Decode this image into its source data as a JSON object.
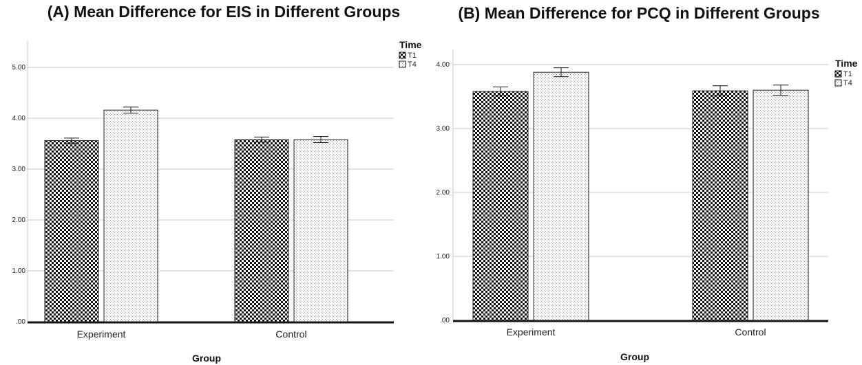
{
  "chart_data": [
    {
      "type": "bar",
      "title": "(A) Mean Difference for EIS in Different Groups",
      "xlabel": "Group",
      "ylabel": "",
      "categories": [
        "Experiment",
        "Control"
      ],
      "legend_title": "Time",
      "legend_position": "top-right",
      "ylim": [
        0,
        5
      ],
      "yticks": [
        0,
        1,
        2,
        3,
        4,
        5
      ],
      "ytick_labels": [
        ".00",
        "1.00",
        "2.00",
        "3.00",
        "4.00",
        "5.00"
      ],
      "grid": true,
      "series": [
        {
          "name": "T1",
          "pattern": "checkerboard",
          "values": [
            3.56,
            3.58
          ],
          "error": [
            0.05,
            0.05
          ]
        },
        {
          "name": "T4",
          "pattern": "dotted",
          "values": [
            4.16,
            3.58
          ],
          "error": [
            0.06,
            0.06
          ]
        }
      ]
    },
    {
      "type": "bar",
      "title": "(B) Mean Difference for PCQ in Different Groups",
      "xlabel": "Group",
      "ylabel": "",
      "categories": [
        "Experiment",
        "Control"
      ],
      "legend_title": "Time",
      "legend_position": "top-right",
      "ylim": [
        0,
        4
      ],
      "yticks": [
        0,
        1,
        2,
        3,
        4
      ],
      "ytick_labels": [
        ".00",
        "1.00",
        "2.00",
        "3.00",
        "4.00"
      ],
      "grid": true,
      "series": [
        {
          "name": "T1",
          "pattern": "checkerboard",
          "values": [
            3.58,
            3.59
          ],
          "error": [
            0.07,
            0.08
          ]
        },
        {
          "name": "T4",
          "pattern": "dotted",
          "values": [
            3.88,
            3.6
          ],
          "error": [
            0.07,
            0.08
          ]
        }
      ]
    }
  ],
  "colors": {
    "grid": "#c8c8c8",
    "bar_stroke": "#222222",
    "baseline": "#111111"
  }
}
